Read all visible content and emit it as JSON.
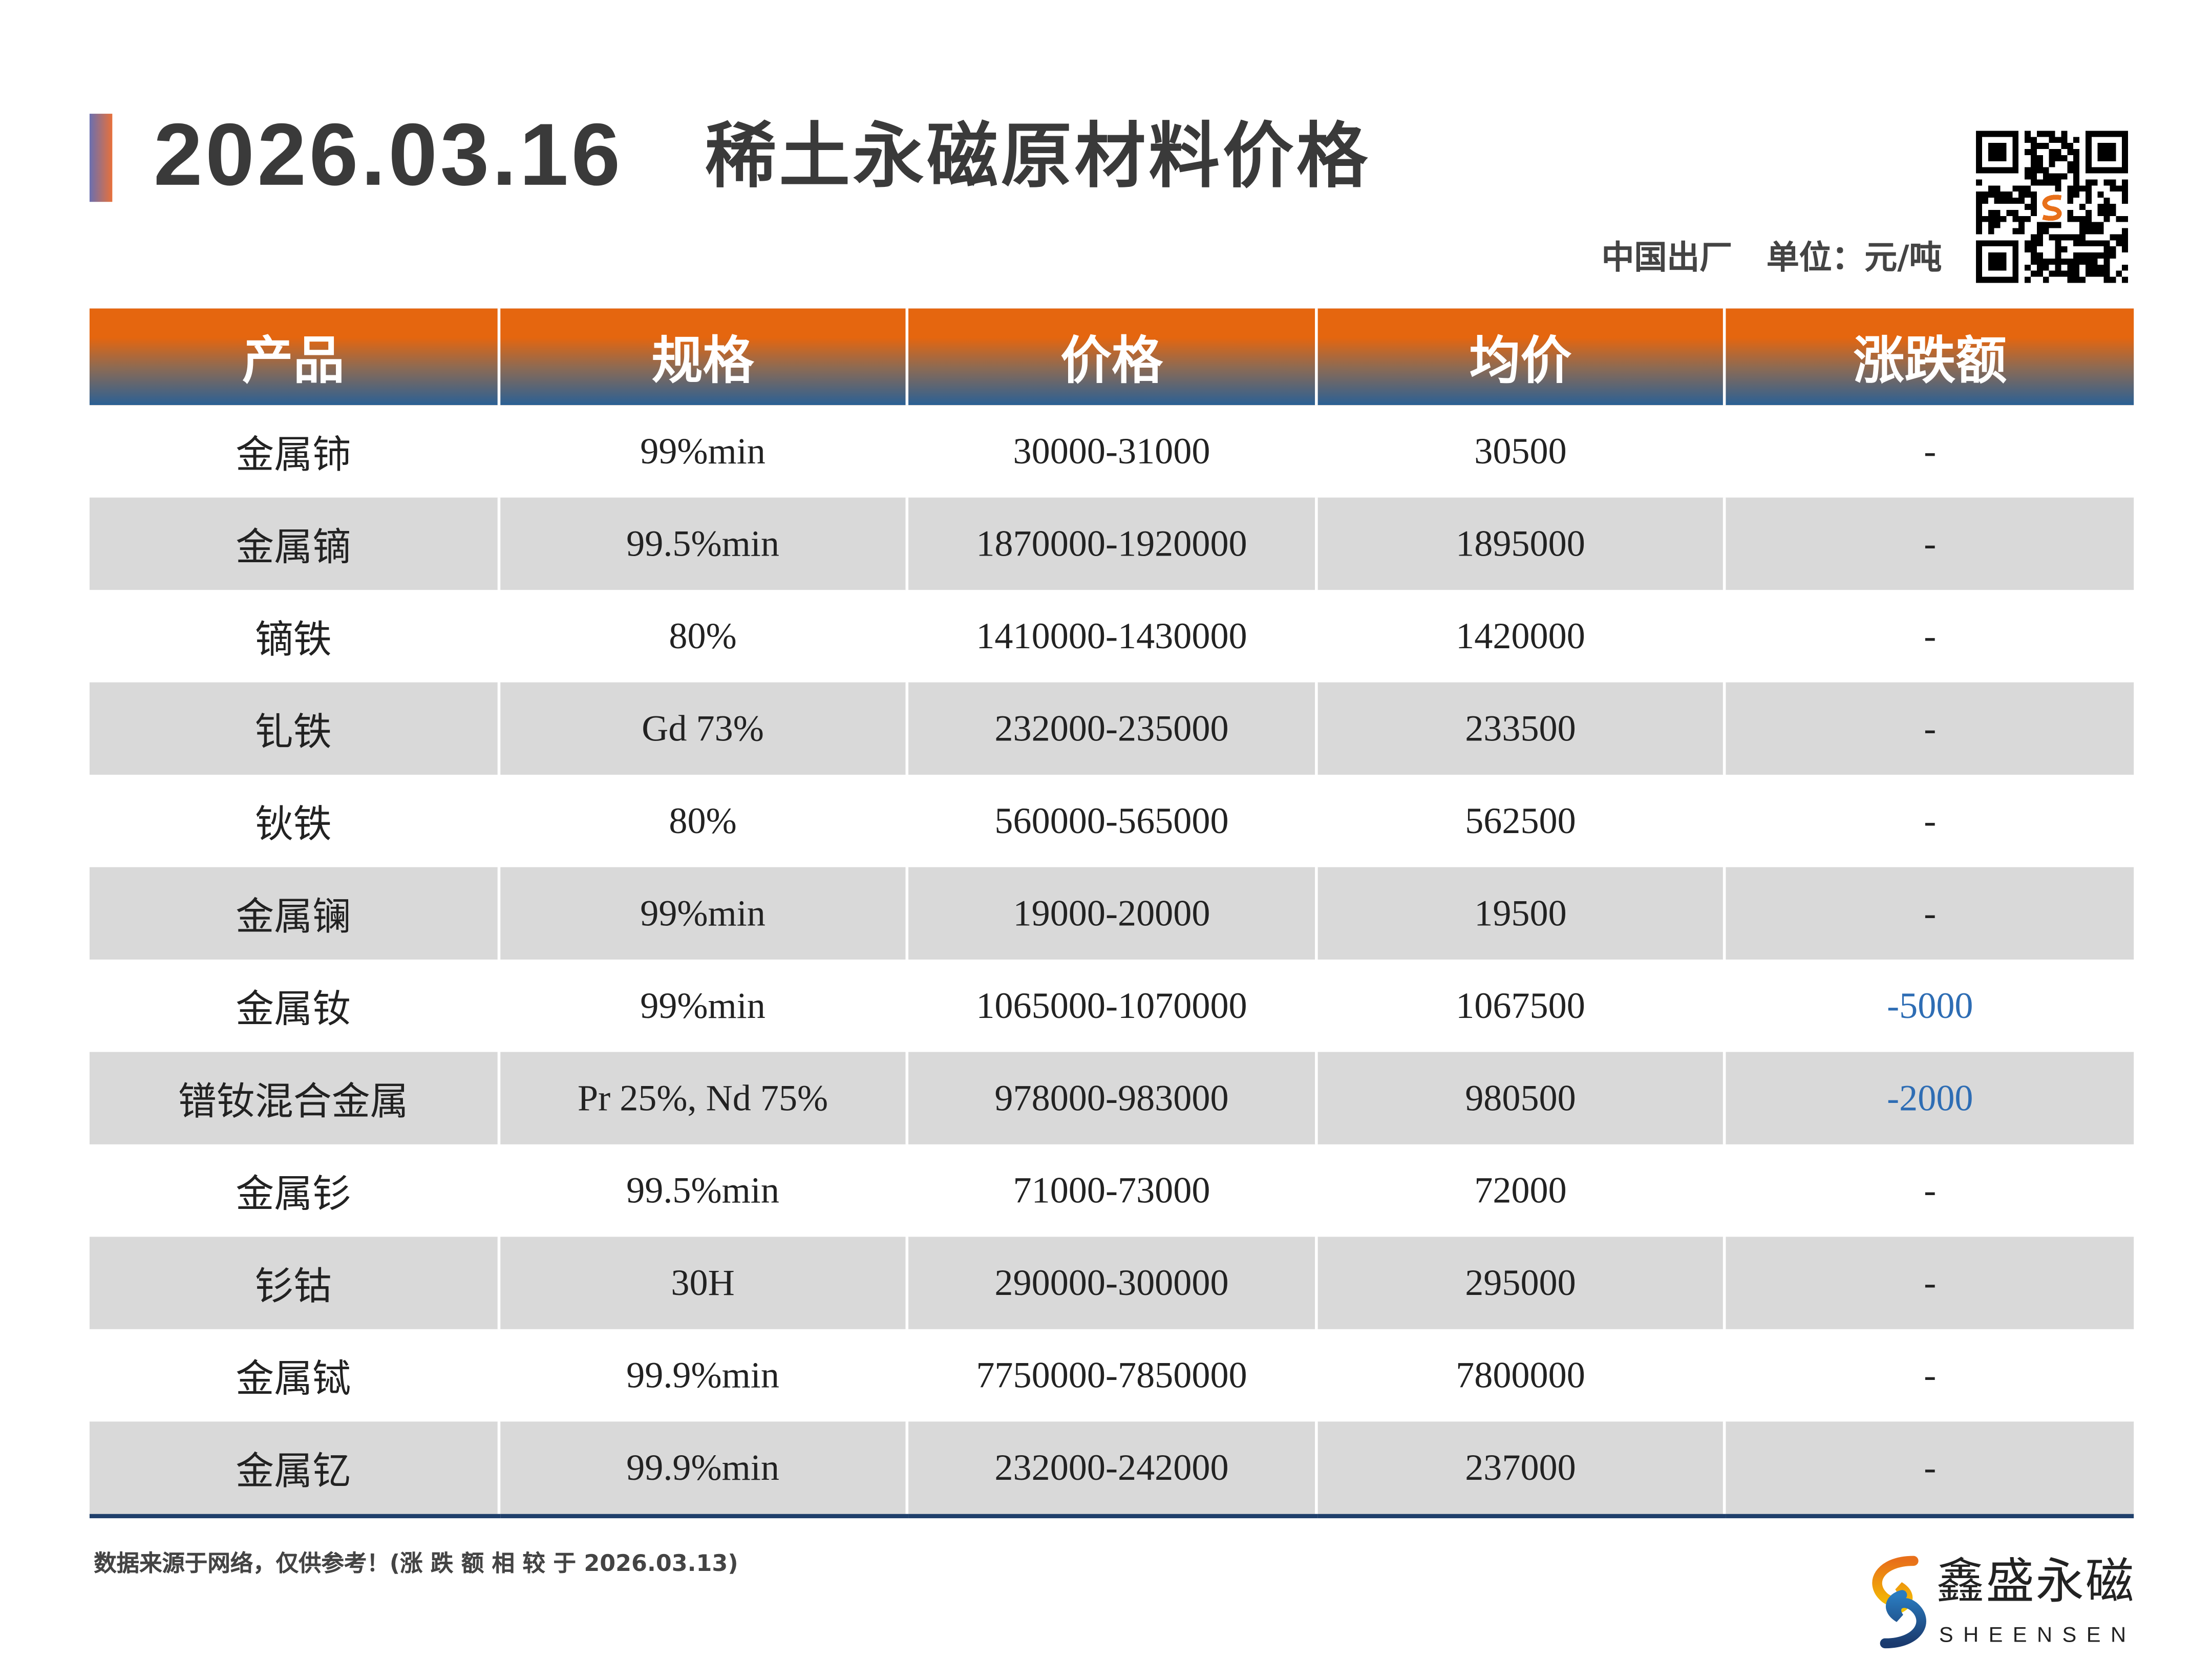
{
  "header": {
    "date": "2026.03.16",
    "title": "稀土永磁原材料价格",
    "origin": "中国出厂",
    "unit": "单位：元/吨"
  },
  "table": {
    "columns": [
      "产品",
      "规格",
      "价格",
      "均价",
      "涨跌额"
    ],
    "rows": [
      [
        "金属铈",
        "99%min",
        "30000-31000",
        "30500",
        "-"
      ],
      [
        "金属镝",
        "99.5%min",
        "1870000-1920000",
        "1895000",
        "-"
      ],
      [
        "镝铁",
        "80%",
        "1410000-1430000",
        "1420000",
        "-"
      ],
      [
        "钆铁",
        "Gd 73%",
        "232000-235000",
        "233500",
        "-"
      ],
      [
        "钬铁",
        "80%",
        "560000-565000",
        "562500",
        "-"
      ],
      [
        "金属镧",
        "99%min",
        "19000-20000",
        "19500",
        "-"
      ],
      [
        "金属钕",
        "99%min",
        "1065000-1070000",
        "1067500",
        "-5000"
      ],
      [
        "镨钕混合金属",
        "Pr 25%, Nd 75%",
        "978000-983000",
        "980500",
        "-2000"
      ],
      [
        "金属钐",
        "99.5%min",
        "71000-73000",
        "72000",
        "-"
      ],
      [
        "钐钴",
        "30H",
        "290000-300000",
        "295000",
        "-"
      ],
      [
        "金属铽",
        "99.9%min",
        "7750000-7850000",
        "7800000",
        "-"
      ],
      [
        "金属钇",
        "99.9%min",
        "232000-242000",
        "237000",
        "-"
      ]
    ]
  },
  "footer": {
    "note": "数据来源于网络，仅供参考！(涨 跌 额 相 较 于 2026.03.13)"
  },
  "logo": {
    "name_cn": "鑫盛永磁",
    "name_en": "SHEENSEN"
  },
  "colors": {
    "header_top": "#e5660f",
    "header_bottom": "#2a6095",
    "row_alt": "#d9d9d9",
    "negative_change": "#2e6db4",
    "bottom_rule": "#1f3f6b"
  },
  "icons": [
    "qr-code-icon",
    "sheensen-logo-icon"
  ]
}
